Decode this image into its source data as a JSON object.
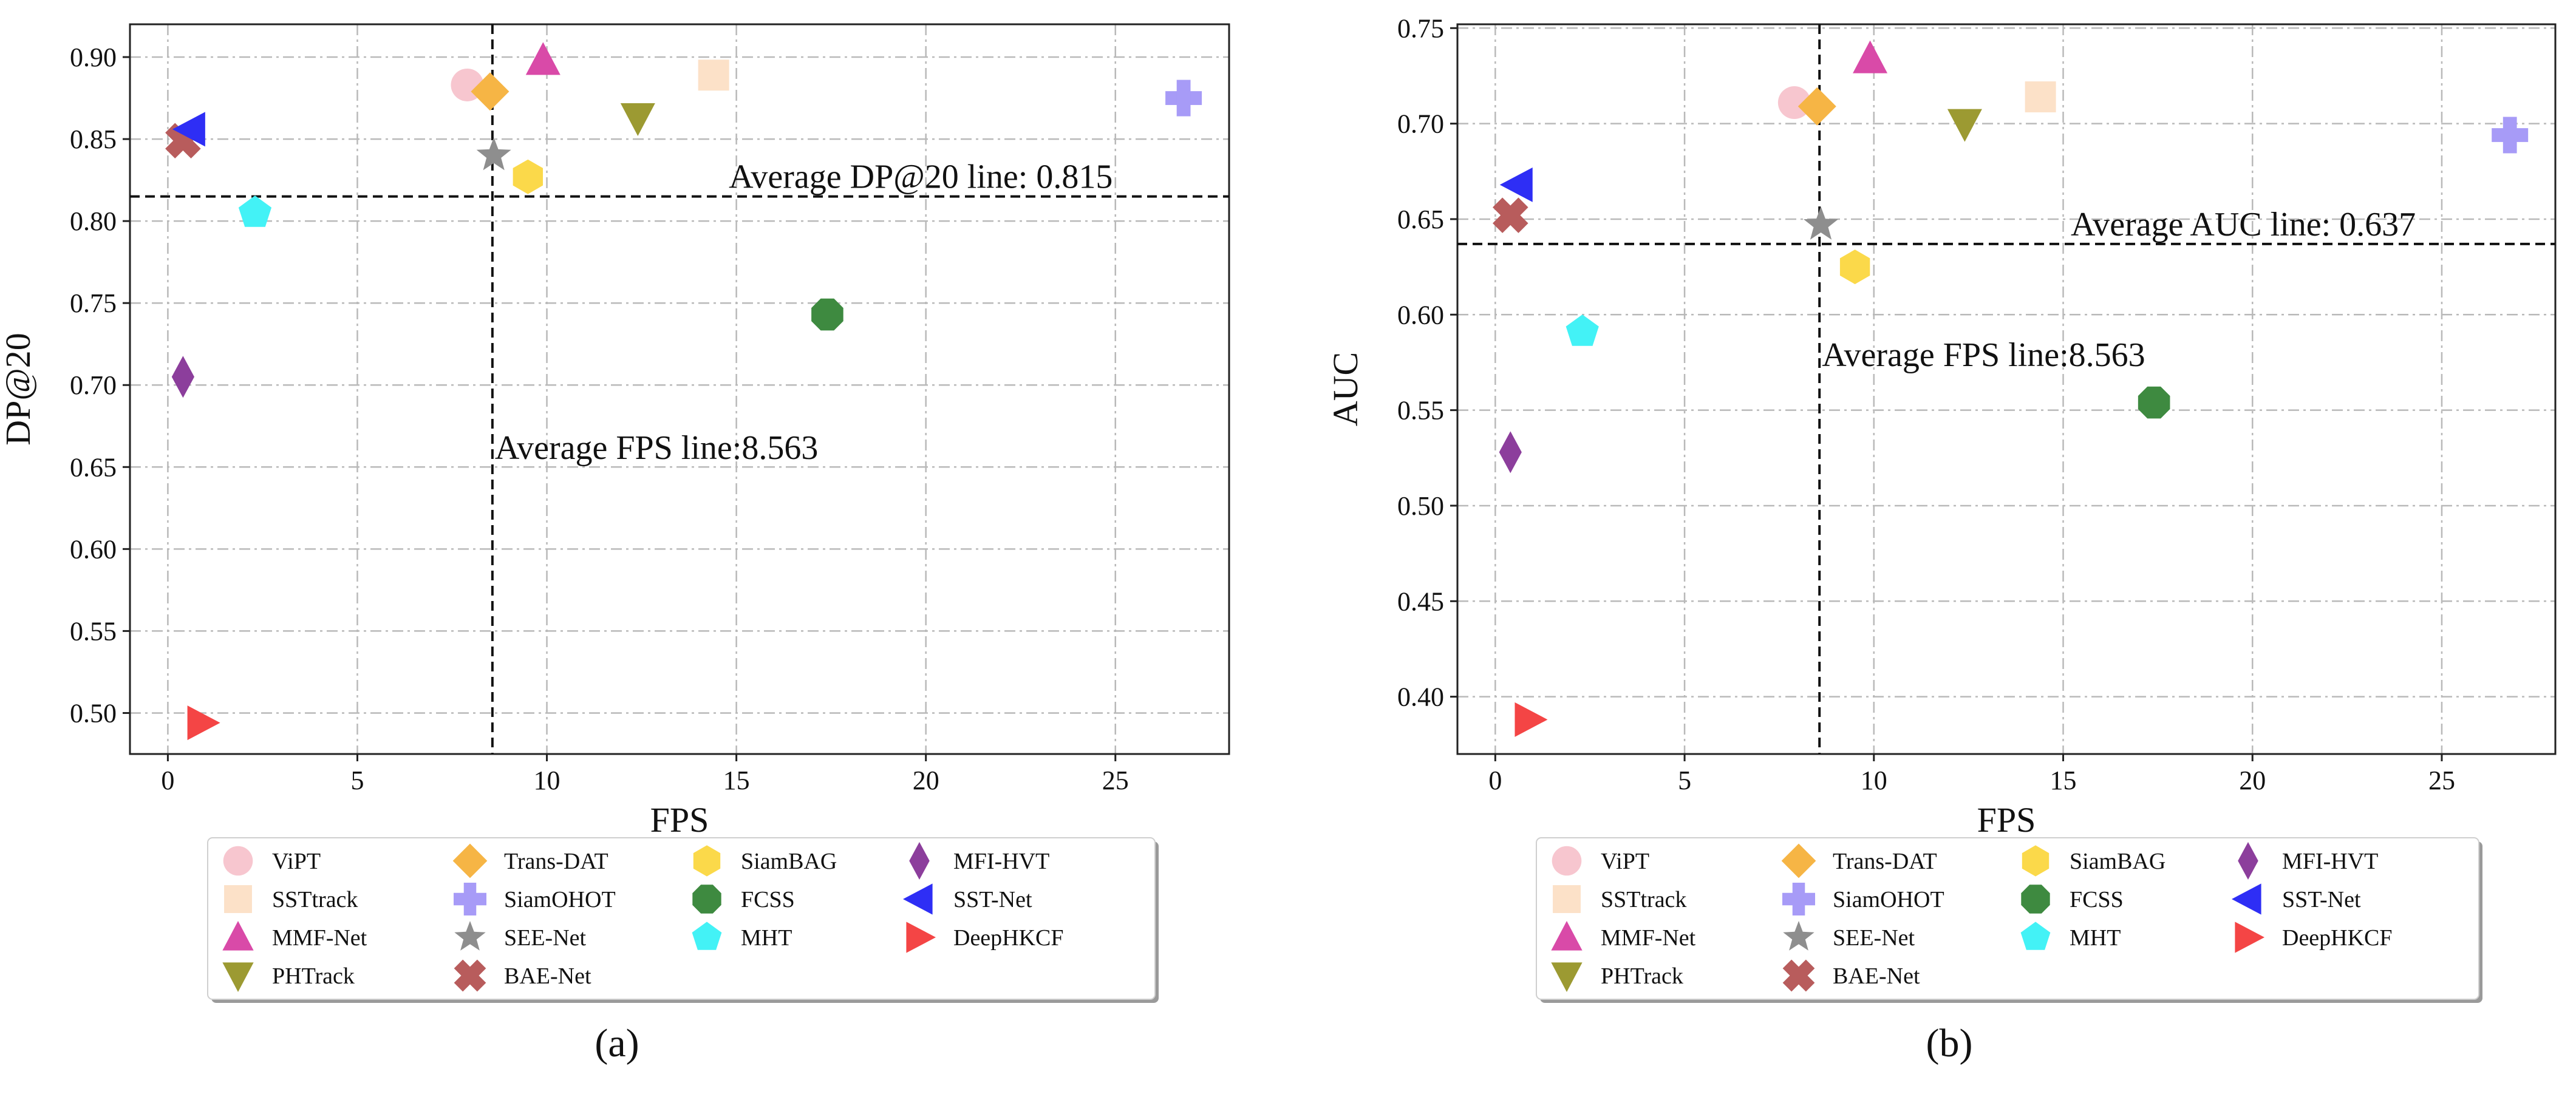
{
  "colors": {
    "ViPT": "#f7c6cf",
    "SSTtrack": "#fce1c8",
    "MMF-Net": "#d94aa8",
    "PHTrack": "#9c9a32",
    "Trans-DAT": "#f6b545",
    "SiamOHOT": "#a79bf7",
    "SEE-Net": "#8e8e8e",
    "BAE-Net": "#b85c5c",
    "SiamBAG": "#fbd94a",
    "FCSS": "#3e8a40",
    "MHT": "#43f2f6",
    "MFI-HVT": "#8c3e9c",
    "SST-Net": "#2e2ef5",
    "DeepHKCF": "#f44545"
  },
  "legend_order": [
    "ViPT",
    "SSTtrack",
    "MMF-Net",
    "PHTrack",
    "Trans-DAT",
    "SiamOHOT",
    "SEE-Net",
    "BAE-Net",
    "SiamBAG",
    "FCSS",
    "MHT",
    "MFI-HVT",
    "SST-Net",
    "DeepHKCF"
  ],
  "markers": {
    "ViPT": "circle",
    "SSTtrack": "square",
    "MMF-Net": "triangle-up",
    "PHTrack": "triangle-down",
    "Trans-DAT": "diamond",
    "SiamOHOT": "plus",
    "SEE-Net": "star",
    "BAE-Net": "x",
    "SiamBAG": "hexagon",
    "FCSS": "octagon",
    "MHT": "pentagon",
    "MFI-HVT": "thin-diamond",
    "SST-Net": "triangle-left",
    "DeepHKCF": "triangle-right"
  },
  "chart_data": [
    {
      "type": "scatter",
      "panel_label": "(a)",
      "xlabel": "FPS",
      "ylabel": "DP@20",
      "xlim": [
        -1,
        28
      ],
      "ylim": [
        0.475,
        0.92
      ],
      "xticks": [
        0,
        5,
        10,
        15,
        20,
        25
      ],
      "yticks": [
        0.5,
        0.55,
        0.6,
        0.65,
        0.7,
        0.75,
        0.8,
        0.85,
        0.9
      ],
      "avg_x": 8.563,
      "avg_y": 0.815,
      "avg_x_label": "Average FPS line:8.563",
      "avg_y_label": "Average DP@20 line: 0.815",
      "avg_x_label_y": 0.655,
      "avg_y_label_x": 14.8,
      "grid": true,
      "points": [
        {
          "name": "ViPT",
          "x": 7.9,
          "y": 0.883
        },
        {
          "name": "SSTtrack",
          "x": 14.4,
          "y": 0.889
        },
        {
          "name": "MMF-Net",
          "x": 9.9,
          "y": 0.898
        },
        {
          "name": "PHTrack",
          "x": 12.4,
          "y": 0.863
        },
        {
          "name": "Trans-DAT",
          "x": 8.5,
          "y": 0.879
        },
        {
          "name": "SiamOHOT",
          "x": 26.8,
          "y": 0.875
        },
        {
          "name": "SEE-Net",
          "x": 8.6,
          "y": 0.84
        },
        {
          "name": "BAE-Net",
          "x": 0.4,
          "y": 0.849
        },
        {
          "name": "SiamBAG",
          "x": 9.5,
          "y": 0.827
        },
        {
          "name": "FCSS",
          "x": 17.4,
          "y": 0.743
        },
        {
          "name": "MHT",
          "x": 2.3,
          "y": 0.805
        },
        {
          "name": "MFI-HVT",
          "x": 0.4,
          "y": 0.705
        },
        {
          "name": "SST-Net",
          "x": 0.6,
          "y": 0.856
        },
        {
          "name": "DeepHKCF",
          "x": 0.9,
          "y": 0.494
        }
      ]
    },
    {
      "type": "scatter",
      "panel_label": "(b)",
      "xlabel": "FPS",
      "ylabel": "AUC",
      "xlim": [
        -1,
        28
      ],
      "ylim": [
        0.37,
        0.752
      ],
      "xticks": [
        0,
        5,
        10,
        15,
        20,
        25
      ],
      "yticks": [
        0.4,
        0.45,
        0.5,
        0.55,
        0.6,
        0.65,
        0.7,
        0.75
      ],
      "avg_x": 8.563,
      "avg_y": 0.637,
      "avg_x_label": "Average FPS line:8.563",
      "avg_y_label": "Average AUC line: 0.637",
      "avg_x_label_y": 0.573,
      "avg_y_label_x": 15.2,
      "grid": true,
      "points": [
        {
          "name": "ViPT",
          "x": 7.9,
          "y": 0.711
        },
        {
          "name": "SSTtrack",
          "x": 14.4,
          "y": 0.714
        },
        {
          "name": "MMF-Net",
          "x": 9.9,
          "y": 0.734
        },
        {
          "name": "PHTrack",
          "x": 12.4,
          "y": 0.7
        },
        {
          "name": "Trans-DAT",
          "x": 8.5,
          "y": 0.709
        },
        {
          "name": "SiamOHOT",
          "x": 26.8,
          "y": 0.694
        },
        {
          "name": "SEE-Net",
          "x": 8.6,
          "y": 0.647
        },
        {
          "name": "BAE-Net",
          "x": 0.4,
          "y": 0.652
        },
        {
          "name": "SiamBAG",
          "x": 9.5,
          "y": 0.625
        },
        {
          "name": "FCSS",
          "x": 17.4,
          "y": 0.554
        },
        {
          "name": "MHT",
          "x": 2.3,
          "y": 0.591
        },
        {
          "name": "MFI-HVT",
          "x": 0.4,
          "y": 0.528
        },
        {
          "name": "SST-Net",
          "x": 0.6,
          "y": 0.668
        },
        {
          "name": "DeepHKCF",
          "x": 0.9,
          "y": 0.388
        }
      ]
    }
  ]
}
